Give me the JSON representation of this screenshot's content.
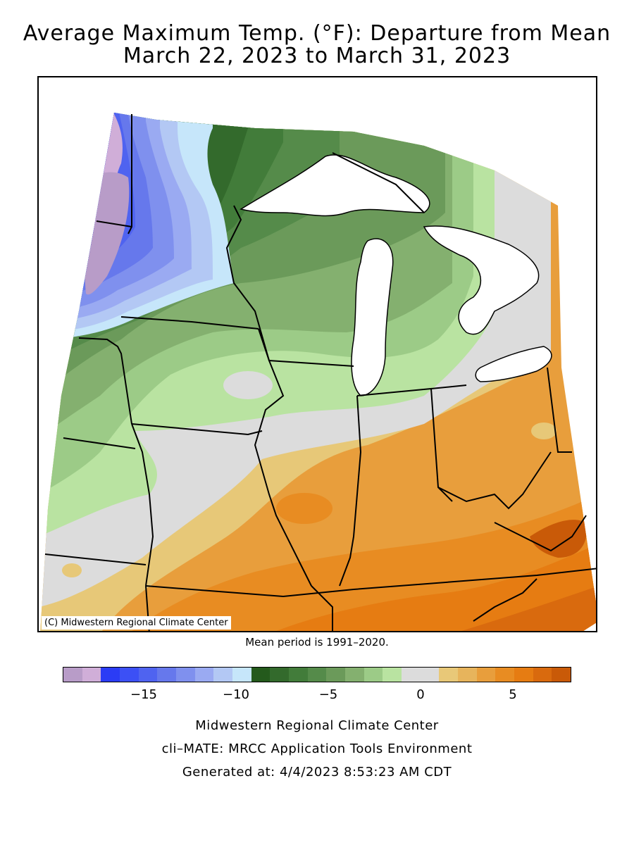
{
  "title_line1": "Average Maximum Temp. (°F): Departure from Mean",
  "title_line2": "March 22, 2023 to March 31, 2023",
  "copyright": "(C) Midwestern Regional Climate Center",
  "mean_period": "Mean period is 1991–2020.",
  "legend": {
    "colors": [
      "#b89cc8",
      "#d0aed8",
      "#2b3cf5",
      "#3c50f5",
      "#4f63f0",
      "#6678ec",
      "#7f90ee",
      "#9aaaf2",
      "#b3c8f4",
      "#c6e6fa",
      "#245a1c",
      "#336a2c",
      "#427c3a",
      "#558b4a",
      "#6b9a5a",
      "#84b06f",
      "#9ccb87",
      "#b9e3a1",
      "#dcdcdc",
      "#dcdcdc",
      "#e8c878",
      "#e7b45c",
      "#e89e3c",
      "#e88c22",
      "#e67c12",
      "#d96a0e",
      "#c95a08"
    ],
    "ticks": [
      {
        "label": "−15",
        "value": -15
      },
      {
        "label": "−10",
        "value": -10
      },
      {
        "label": "−5",
        "value": -5
      },
      {
        "label": "0",
        "value": 0
      },
      {
        "label": "5",
        "value": 5
      }
    ]
  },
  "footer_line1": "Midwestern Regional Climate Center",
  "footer_line2": "cli–MATE: MRCC Application Tools Environment",
  "footer_line3": "Generated at: 4/4/2023 8:53:23 AM CDT"
}
